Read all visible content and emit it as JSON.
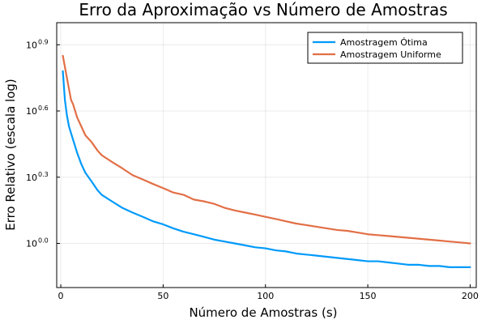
{
  "chart_data": {
    "type": "line",
    "title": "Erro da Aproximação vs Número de Amostras",
    "xlabel": "Número de Amostras (s)",
    "ylabel": "Erro Relativo (escala log)",
    "xlim": [
      -2,
      203
    ],
    "ylim_log10": [
      -0.2,
      1.0
    ],
    "y_scale": "log10",
    "x_ticks": [
      0,
      50,
      100,
      150,
      200
    ],
    "x_tick_labels": [
      "0",
      "50",
      "100",
      "150",
      "200"
    ],
    "y_ticks": [
      0.0,
      0.3,
      0.6,
      0.9
    ],
    "y_tick_base": "10",
    "y_tick_exponents": [
      "0.0",
      "0.3",
      "0.6",
      "0.9"
    ],
    "grid": true,
    "legend_position": "top-right",
    "series": [
      {
        "name": "Amostragem Ótima",
        "color": "#009AFA",
        "x": [
          1,
          2,
          3,
          4,
          5,
          6,
          8,
          10,
          12,
          15,
          18,
          20,
          25,
          30,
          35,
          40,
          45,
          50,
          55,
          60,
          65,
          70,
          75,
          80,
          85,
          90,
          95,
          100,
          105,
          110,
          115,
          120,
          125,
          130,
          135,
          140,
          145,
          150,
          155,
          160,
          165,
          170,
          175,
          180,
          185,
          190,
          195,
          200
        ],
        "y": [
          6.03,
          4.47,
          3.8,
          3.39,
          3.16,
          2.95,
          2.57,
          2.29,
          2.09,
          1.91,
          1.74,
          1.66,
          1.55,
          1.45,
          1.38,
          1.32,
          1.26,
          1.22,
          1.17,
          1.13,
          1.1,
          1.07,
          1.04,
          1.02,
          1.0,
          0.98,
          0.96,
          0.95,
          0.93,
          0.92,
          0.9,
          0.89,
          0.88,
          0.87,
          0.86,
          0.85,
          0.84,
          0.83,
          0.83,
          0.82,
          0.81,
          0.8,
          0.8,
          0.79,
          0.79,
          0.78,
          0.78,
          0.78
        ]
      },
      {
        "name": "Amostragem Uniforme",
        "color": "#E26F46",
        "x": [
          1,
          2,
          3,
          4,
          5,
          6,
          8,
          10,
          12,
          15,
          18,
          20,
          25,
          30,
          35,
          40,
          45,
          50,
          55,
          60,
          65,
          70,
          75,
          80,
          85,
          90,
          95,
          100,
          105,
          110,
          115,
          120,
          125,
          130,
          135,
          140,
          145,
          150,
          155,
          160,
          165,
          170,
          175,
          180,
          185,
          190,
          195,
          200
        ],
        "y": [
          7.08,
          6.31,
          5.62,
          5.01,
          4.47,
          4.27,
          3.72,
          3.39,
          3.09,
          2.88,
          2.63,
          2.51,
          2.34,
          2.19,
          2.04,
          1.95,
          1.86,
          1.78,
          1.7,
          1.66,
          1.58,
          1.55,
          1.51,
          1.45,
          1.41,
          1.38,
          1.35,
          1.32,
          1.29,
          1.26,
          1.23,
          1.21,
          1.19,
          1.17,
          1.15,
          1.14,
          1.12,
          1.1,
          1.09,
          1.08,
          1.07,
          1.06,
          1.05,
          1.04,
          1.03,
          1.02,
          1.01,
          1.0
        ]
      }
    ]
  }
}
